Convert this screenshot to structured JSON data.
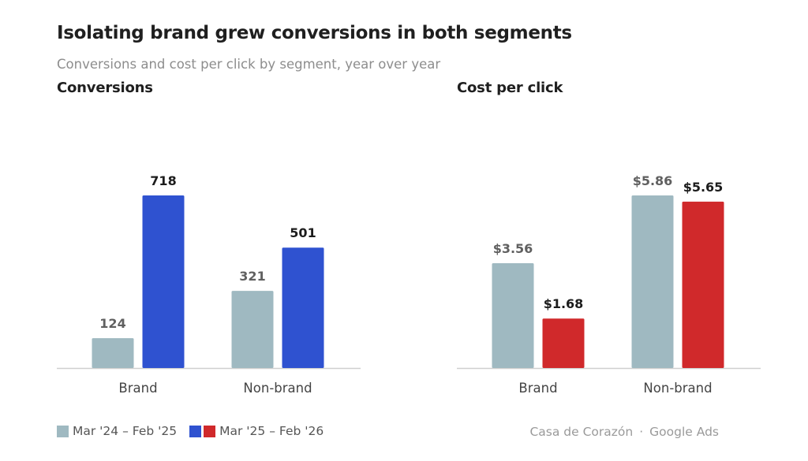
{
  "title": "Isolating brand grew conversions in both segments",
  "subtitle": "Conversions and cost per click by segment, year over year",
  "colors": {
    "prior": "#9fb9c1",
    "current_conversions": "#2f52d0",
    "current_cpc": "#d0292b",
    "baseline": "#cfcfcf",
    "prior_label": "#606060",
    "current_label": "#1c1c1c",
    "category_label": "#444444"
  },
  "chart_data": [
    {
      "type": "bar",
      "title": "Conversions",
      "categories": [
        "Brand",
        "Non-brand"
      ],
      "series": [
        {
          "name": "Mar '24 – Feb '25",
          "values": [
            124,
            321
          ],
          "labels": [
            "124",
            "321"
          ]
        },
        {
          "name": "Mar '25 – Feb '26",
          "values": [
            718,
            501
          ],
          "labels": [
            "718",
            "501"
          ]
        }
      ],
      "ylim": [
        0,
        718
      ],
      "xlabel": "",
      "ylabel": "",
      "grid": false
    },
    {
      "type": "bar",
      "title": "Cost per click",
      "categories": [
        "Brand",
        "Non-brand"
      ],
      "series": [
        {
          "name": "Mar '24 – Feb '25",
          "values": [
            3.56,
            5.86
          ],
          "labels": [
            "$3.56",
            "$5.86"
          ]
        },
        {
          "name": "Mar '25 – Feb '26",
          "values": [
            1.68,
            5.65
          ],
          "labels": [
            "$1.68",
            "$5.65"
          ]
        }
      ],
      "ylim": [
        0,
        5.86
      ],
      "xlabel": "",
      "ylabel": "",
      "grid": false
    }
  ],
  "legend": {
    "prior_label": "Mar '24 – Feb '25",
    "current_label": "Mar '25 – Feb '26"
  },
  "source": {
    "org": "Casa de Corazón",
    "separator": "·",
    "platform": "Google Ads"
  }
}
